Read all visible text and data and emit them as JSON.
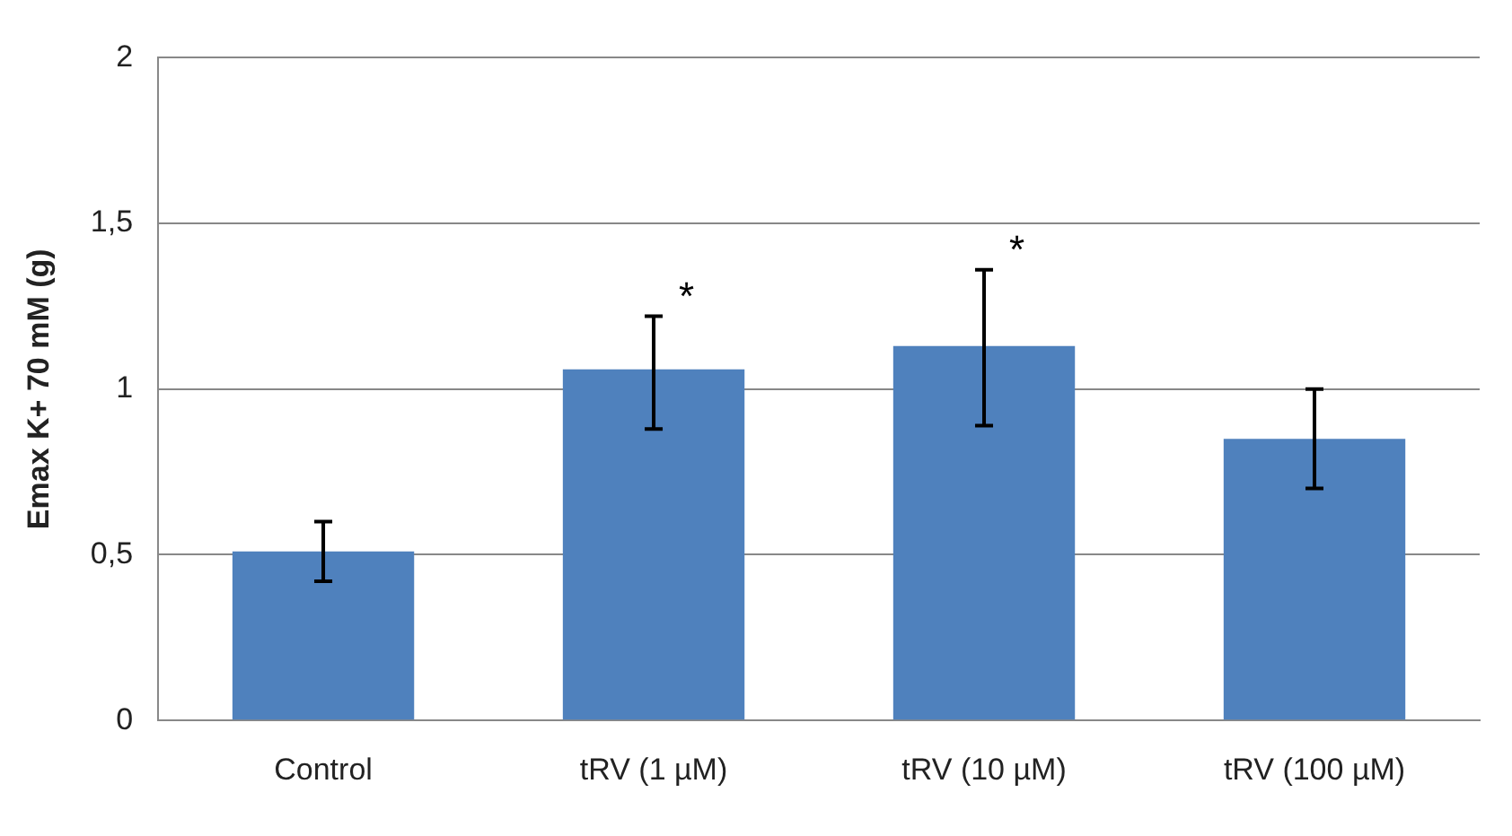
{
  "chart_data": {
    "type": "bar",
    "ylabel": "Emax K+ 70 mM (g)",
    "categories": [
      "Control",
      "tRV (1 µM)",
      "tRV (10 µM)",
      "tRV (100 µM)"
    ],
    "values": [
      0.51,
      1.06,
      1.13,
      0.85
    ],
    "errors": [
      [
        0.42,
        0.6
      ],
      [
        0.88,
        1.22
      ],
      [
        0.89,
        1.36
      ],
      [
        0.7,
        1.0
      ]
    ],
    "color": "#4f81bd",
    "ylim": [
      0,
      2
    ],
    "yticks": [
      0,
      {
        "value": 0.5,
        "label": "0,5"
      },
      1,
      {
        "value": 1.5,
        "label": "1,5"
      },
      2
    ],
    "grid": "y",
    "annotations": [
      {
        "text": "*",
        "x": "tRV (1 µM)",
        "y": 1.22
      },
      {
        "text": "*",
        "x": "tRV (10 µM)",
        "y": 1.36
      }
    ]
  }
}
